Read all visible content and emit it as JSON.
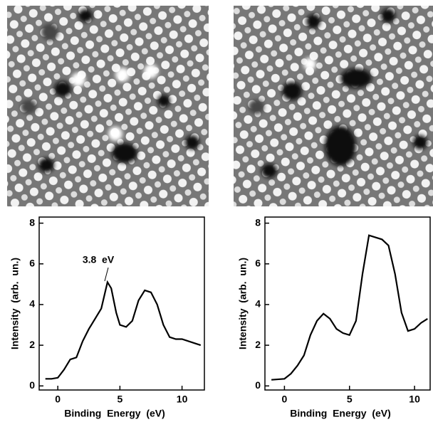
{
  "chart_data": [
    {
      "type": "line",
      "color": "#000000",
      "xlabel": "Binding  Energy  (eV)",
      "ylabel": "Intensity  (arb.  un.)",
      "annotation": "3.8  eV",
      "x": [
        -1,
        -0.5,
        0,
        0.5,
        1,
        1.5,
        2,
        2.5,
        3,
        3.5,
        4,
        4.3,
        4.7,
        5,
        5.5,
        6,
        6.5,
        7,
        7.5,
        8,
        8.5,
        9,
        9.5,
        10,
        11,
        11.5
      ],
      "values": [
        0.35,
        0.35,
        0.4,
        0.8,
        1.3,
        1.4,
        2.2,
        2.8,
        3.3,
        3.8,
        5.1,
        4.8,
        3.6,
        3.0,
        2.9,
        3.2,
        4.2,
        4.7,
        4.6,
        4.0,
        3.0,
        2.4,
        2.3,
        2.3,
        2.1,
        2.0
      ],
      "xlim": [
        -1.5,
        11.8
      ],
      "ylim": [
        -0.2,
        8.3
      ],
      "xticks": [
        0,
        5,
        10
      ],
      "yticks": [
        0,
        2,
        4,
        6,
        8
      ]
    },
    {
      "type": "line",
      "color": "#000000",
      "xlabel": "Binding  Energy  (eV)",
      "ylabel": "Intensity  (arb.  un.)",
      "x": [
        -1,
        0,
        0.5,
        1,
        1.5,
        2,
        2.5,
        3,
        3.5,
        4,
        4.5,
        5,
        5.5,
        6,
        6.5,
        7,
        7.5,
        8,
        8.5,
        9,
        9.5,
        10,
        10.5,
        11
      ],
      "values": [
        0.3,
        0.35,
        0.6,
        1.0,
        1.5,
        2.5,
        3.2,
        3.55,
        3.3,
        2.8,
        2.6,
        2.5,
        3.2,
        5.5,
        7.4,
        7.3,
        7.2,
        6.9,
        5.5,
        3.6,
        2.7,
        2.8,
        3.1,
        3.3
      ],
      "xlim": [
        -1.5,
        11.2
      ],
      "ylim": [
        -0.2,
        8.3
      ],
      "xticks": [
        0,
        5,
        10
      ],
      "yticks": [
        0,
        2,
        4,
        6,
        8
      ]
    }
  ]
}
